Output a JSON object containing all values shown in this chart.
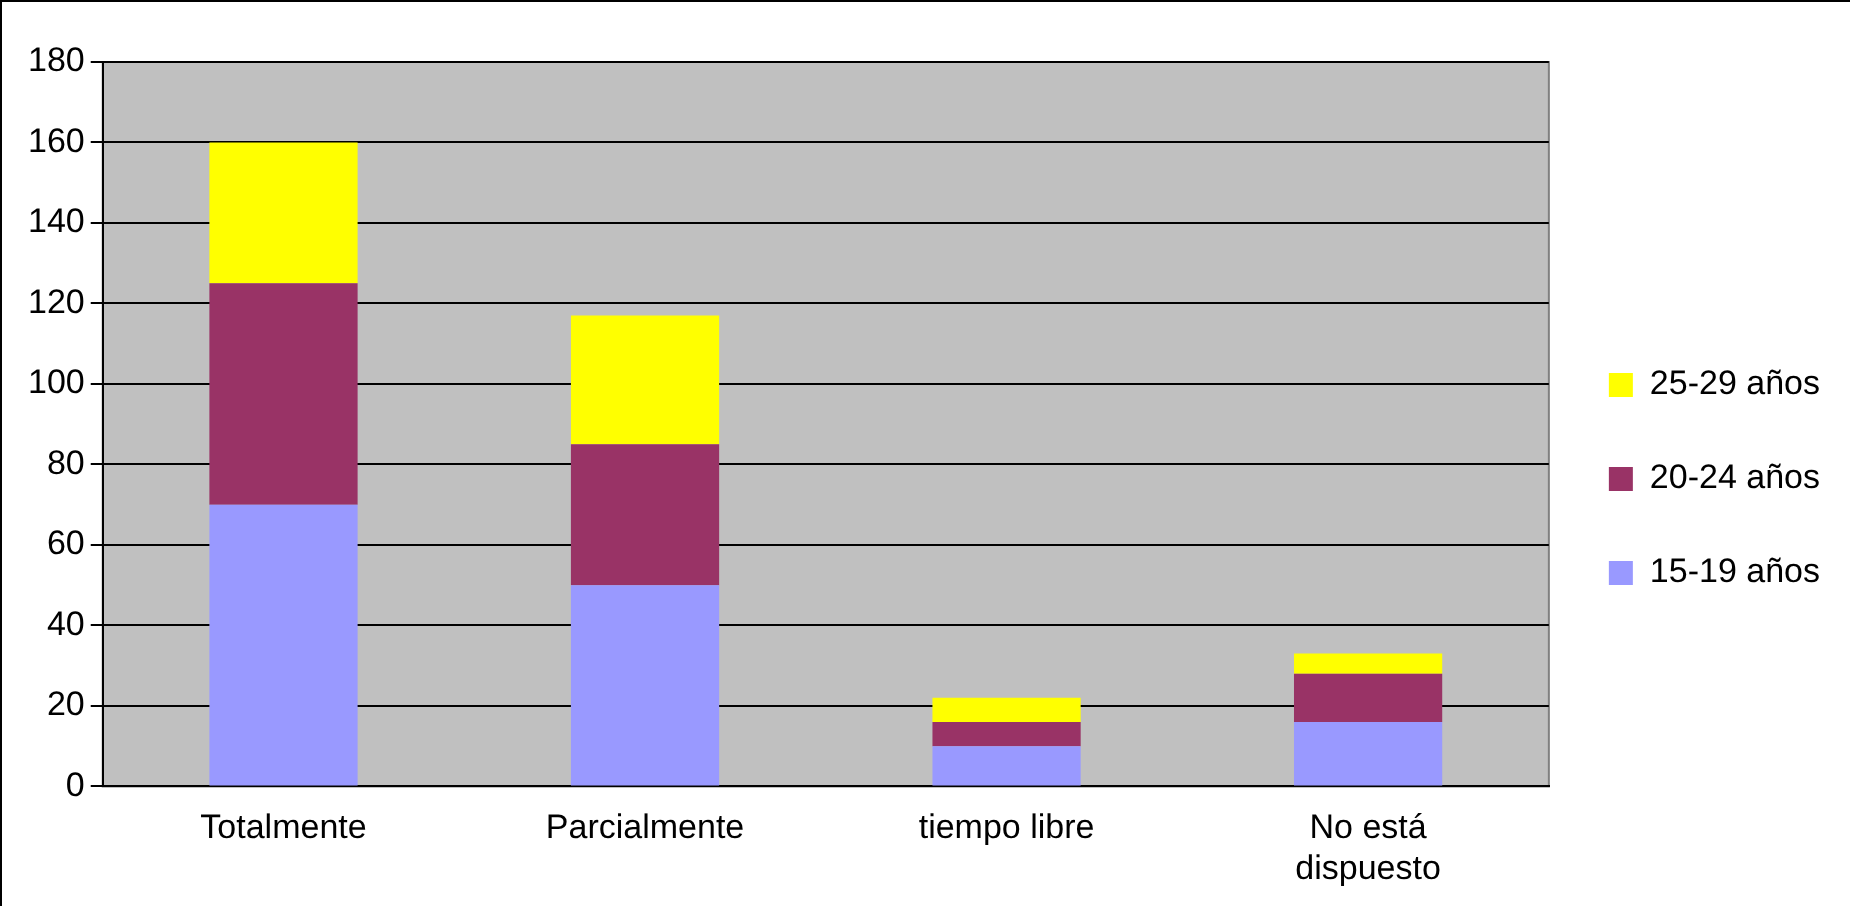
{
  "chart_data": {
    "type": "bar",
    "stacked": true,
    "categories": [
      "Totalmente",
      "Parcialmente",
      "tiempo libre",
      "No está dispuesto"
    ],
    "series": [
      {
        "name": "15-19 años",
        "color": "#9999ff",
        "values": [
          70,
          50,
          10,
          16
        ]
      },
      {
        "name": "20-24 años",
        "color": "#993366",
        "values": [
          55,
          35,
          6,
          12
        ]
      },
      {
        "name": "25-29 años",
        "color": "#ffff00",
        "values": [
          35,
          32,
          6,
          5
        ]
      }
    ],
    "ylim": [
      0,
      180
    ],
    "yticks": [
      0,
      20,
      40,
      60,
      80,
      100,
      120,
      140,
      160,
      180
    ],
    "grid": "y",
    "legend": "right"
  }
}
